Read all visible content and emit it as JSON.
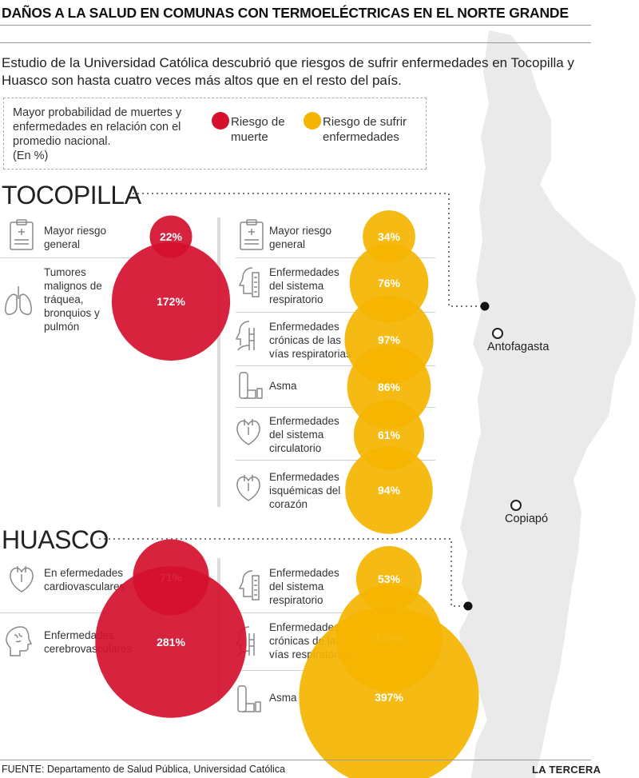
{
  "title": "DAÑOS A LA SALUD EN COMUNAS CON TERMOELÉCTRICAS EN EL NORTE GRANDE",
  "subtitle": "Estudio de la Universidad Católica descubrió que riesgos de sufrir enfermedades en Tocopilla y Huasco son hasta cuatro veces más altos que en el resto del país.",
  "legend": {
    "description": "Mayor probabilidad de muertes y enfermedades en relación con el promedio nacional.",
    "unit": "(En %)",
    "death_label": "Riesgo de muerte",
    "disease_label": "Riesgo de sufrir enfermedades"
  },
  "colors": {
    "death": "#d5102e",
    "disease": "#f5b400",
    "map": "#eaeaea"
  },
  "map": {
    "cities": [
      "Antofagasta",
      "Copiapó"
    ]
  },
  "chart_data": {
    "type": "bubble",
    "unit": "%",
    "sections": [
      {
        "name": "TOCOPILLA",
        "death": [
          {
            "label": "Mayor riesgo general",
            "value": 22,
            "display": "22%",
            "icon": "clipboard-icon"
          },
          {
            "label": "Tumores malignos de tráquea, bronquios y pulmón",
            "value": 172,
            "display": "172%",
            "icon": "lungs-icon"
          }
        ],
        "disease": [
          {
            "label": "Mayor riesgo general",
            "value": 34,
            "display": "34%",
            "icon": "clipboard-icon"
          },
          {
            "label": "Enfermedades del sistema respiratorio",
            "value": 76,
            "display": "76%",
            "icon": "respiratory-icon"
          },
          {
            "label": "Enfermedades crónicas de las vías respiratorias",
            "value": 97,
            "display": "97%",
            "icon": "airway-icon"
          },
          {
            "label": "Asma",
            "value": 86,
            "display": "86%",
            "icon": "inhaler-icon"
          },
          {
            "label": "Enfermedades del sistema circulatorio",
            "value": 61,
            "display": "61%",
            "icon": "heart-icon"
          },
          {
            "label": "Enfermedades isquémicas del corazón",
            "value": 94,
            "display": "94%",
            "icon": "heart-icon"
          }
        ]
      },
      {
        "name": "HUASCO",
        "death": [
          {
            "label": "En efermedades cardiovasculares",
            "value": 71,
            "display": "71%",
            "icon": "heart-icon"
          },
          {
            "label": "Enfermedades cerebrovasculares",
            "value": 281,
            "display": "281%",
            "icon": "brain-icon"
          }
        ],
        "disease": [
          {
            "label": "Enfermedades del sistema respiratorio",
            "value": 53,
            "display": "53%",
            "icon": "respiratory-icon"
          },
          {
            "label": "Enfermedades crónicas de las vías respiratorias",
            "value": 139,
            "display": "139%",
            "icon": "airway-icon"
          },
          {
            "label": "Asma",
            "value": 397,
            "display": "397%",
            "icon": "inhaler-icon"
          }
        ]
      }
    ]
  },
  "footer": {
    "source": "FUENTE: Departamento de Salud Pública, Universidad Católica",
    "brand": "LA TERCERA"
  }
}
